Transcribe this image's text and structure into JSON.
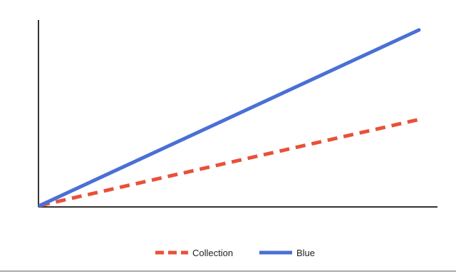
{
  "chart_data": {
    "type": "line",
    "title": "",
    "xlabel": "",
    "ylabel": "",
    "x": [
      0,
      1
    ],
    "xlim": [
      0,
      1
    ],
    "ylim": [
      0,
      1
    ],
    "grid": false,
    "legend_position": "bottom",
    "series": [
      {
        "name": "Collection",
        "values": [
          0,
          0.49
        ],
        "color": "#e8513a",
        "line_style": "dashed"
      },
      {
        "name": "Blue",
        "values": [
          0,
          1.0
        ],
        "color": "#4a6fd6",
        "line_style": "solid"
      }
    ]
  },
  "colors": {
    "axis": "#333333",
    "background": "#ffffff",
    "bottom_rule": "#555555"
  }
}
